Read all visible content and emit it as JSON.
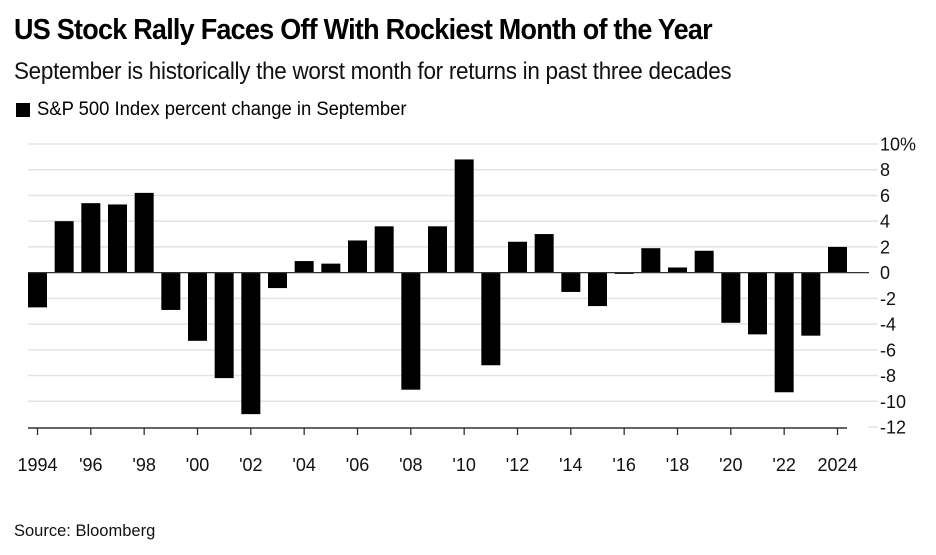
{
  "chart_data": {
    "type": "bar",
    "title": "US Stock Rally Faces Off With Rockiest Month of the Year",
    "subtitle": "September is historically the worst month for returns in past three decades",
    "legend": [
      {
        "name": "S&P 500 Index percent change in September",
        "color": "#000000"
      }
    ],
    "legend_placement": "top-left",
    "xlabel": "",
    "ylabel": "",
    "ylim": [
      -12,
      10
    ],
    "y_ticks": [
      10,
      8,
      6,
      4,
      2,
      0,
      -2,
      -4,
      -6,
      -8,
      -10,
      -12
    ],
    "y_tick_labels": [
      "10%",
      "8",
      "6",
      "4",
      "2",
      "0",
      "-2",
      "-4",
      "-6",
      "-8",
      "-10",
      "-12"
    ],
    "y_axis_side": "right",
    "grid": true,
    "x_tick_labels": [
      "1994",
      "'96",
      "'98",
      "'00",
      "'02",
      "'04",
      "'06",
      "'08",
      "'10",
      "'12",
      "'14",
      "'16",
      "'18",
      "'20",
      "'22",
      "2024"
    ],
    "categories": [
      "1994",
      "1995",
      "1996",
      "1997",
      "1998",
      "1999",
      "2000",
      "2001",
      "2002",
      "2003",
      "2004",
      "2005",
      "2006",
      "2007",
      "2008",
      "2009",
      "2010",
      "2011",
      "2012",
      "2013",
      "2014",
      "2015",
      "2016",
      "2017",
      "2018",
      "2019",
      "2020",
      "2021",
      "2022",
      "2023",
      "2024"
    ],
    "series": [
      {
        "name": "S&P 500 Index percent change in September",
        "color": "#000000",
        "values": [
          -2.7,
          4.0,
          5.4,
          5.3,
          6.2,
          -2.9,
          -5.3,
          -8.2,
          -11.0,
          -1.2,
          0.9,
          0.7,
          2.5,
          3.6,
          -9.1,
          3.6,
          8.8,
          -7.2,
          2.4,
          3.0,
          -1.5,
          -2.6,
          -0.1,
          1.9,
          0.4,
          1.7,
          -3.9,
          -4.8,
          -9.3,
          -4.9,
          2.0
        ]
      }
    ],
    "source": "Source: Bloomberg"
  }
}
